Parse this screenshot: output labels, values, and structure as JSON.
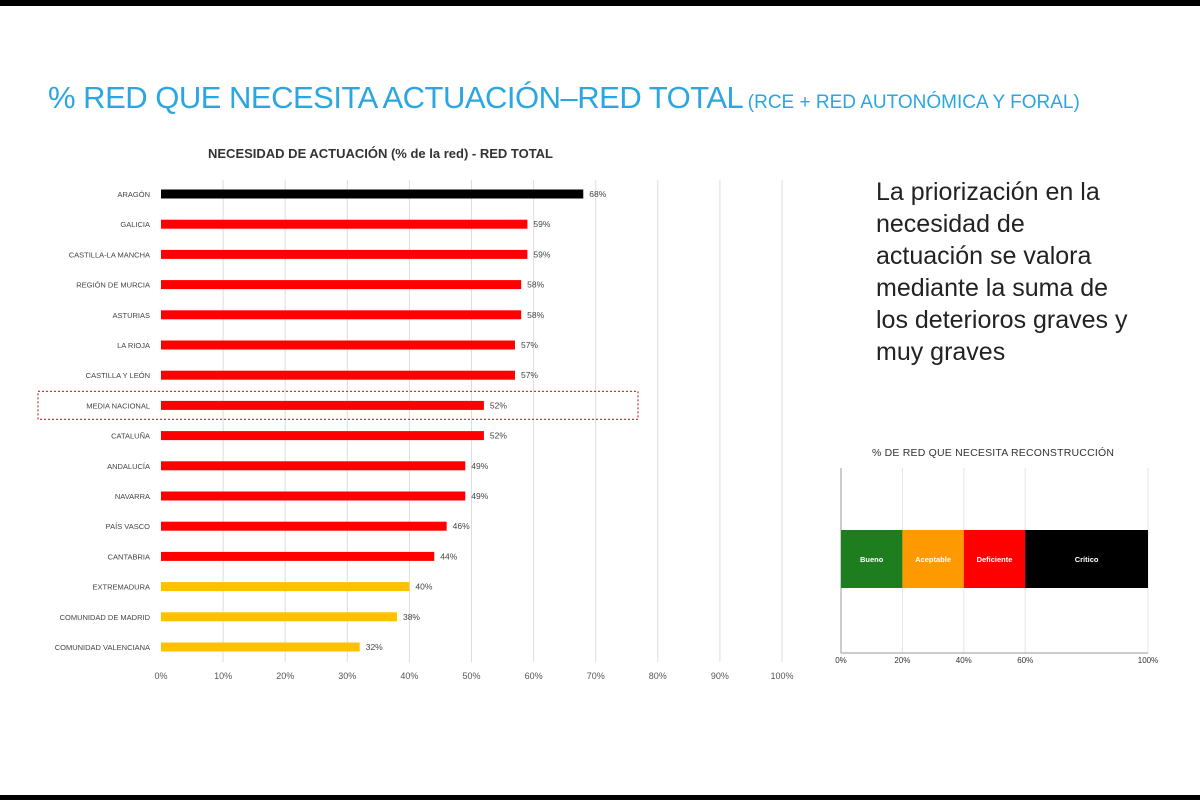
{
  "header": {
    "title_main": "% RED QUE NECESITA ACTUACIÓN–RED TOTAL",
    "title_sub": "(RCE + RED AUTONÓMICA Y FORAL)"
  },
  "side_text": "La priorización en la necesidad de actuación se valora mediante la suma de los deterioros graves y muy graves",
  "colors": {
    "title_blue": "#2aa6e0",
    "black": "#000000",
    "red": "#ff0000",
    "yellow": "#ffc000",
    "green": "#1e7d1e",
    "orange": "#ff9900",
    "highlight_border": "#e03030"
  },
  "chart_data": [
    {
      "type": "bar",
      "orientation": "horizontal",
      "title": "NECESIDAD DE ACTUACIÓN (% de la red)  - RED TOTAL",
      "xlim": [
        0,
        100
      ],
      "x_ticks": [
        "0%",
        "10%",
        "20%",
        "30%",
        "40%",
        "50%",
        "60%",
        "70%",
        "80%",
        "90%",
        "100%"
      ],
      "grid": "vertical",
      "highlighted_category": "MEDIA NACIONAL",
      "bars": [
        {
          "category": "ARAGÓN",
          "value": 68,
          "label": "68%",
          "color": "#000000"
        },
        {
          "category": "GALICIA",
          "value": 59,
          "label": "59%",
          "color": "#ff0000"
        },
        {
          "category": "CASTILLA-LA MANCHA",
          "value": 59,
          "label": "59%",
          "color": "#ff0000"
        },
        {
          "category": "REGIÓN DE MURCIA",
          "value": 58,
          "label": "58%",
          "color": "#ff0000"
        },
        {
          "category": "ASTURIAS",
          "value": 58,
          "label": "58%",
          "color": "#ff0000"
        },
        {
          "category": "LA RIOJA",
          "value": 57,
          "label": "57%",
          "color": "#ff0000"
        },
        {
          "category": "CASTILLA Y LEÓN",
          "value": 57,
          "label": "57%",
          "color": "#ff0000"
        },
        {
          "category": "MEDIA NACIONAL",
          "value": 52,
          "label": "52%",
          "color": "#ff0000"
        },
        {
          "category": "CATALUÑA",
          "value": 52,
          "label": "52%",
          "color": "#ff0000"
        },
        {
          "category": "ANDALUCÍA",
          "value": 49,
          "label": "49%",
          "color": "#ff0000"
        },
        {
          "category": "NAVARRA",
          "value": 49,
          "label": "49%",
          "color": "#ff0000"
        },
        {
          "category": "PAÍS VASCO",
          "value": 46,
          "label": "46%",
          "color": "#ff0000"
        },
        {
          "category": "CANTABRIA",
          "value": 44,
          "label": "44%",
          "color": "#ff0000"
        },
        {
          "category": "EXTREMADURA",
          "value": 40,
          "label": "40%",
          "color": "#ffc000"
        },
        {
          "category": "COMUNIDAD DE MADRID",
          "value": 38,
          "label": "38%",
          "color": "#ffc000"
        },
        {
          "category": "COMUNIDAD VALENCIANA",
          "value": 32,
          "label": "32%",
          "color": "#ffc000"
        }
      ]
    },
    {
      "type": "bar",
      "orientation": "horizontal-stacked",
      "title": "% DE RED QUE NECESITA RECONSTRUCCIÓN",
      "xlim": [
        0,
        100
      ],
      "x_ticks": [
        {
          "value": 0,
          "label": "0%"
        },
        {
          "value": 20,
          "label": "20%"
        },
        {
          "value": 40,
          "label": "40%"
        },
        {
          "value": 60,
          "label": "60%"
        },
        {
          "value": 100,
          "label": "100%"
        }
      ],
      "segments": [
        {
          "label": "Bueno",
          "start": 0,
          "end": 20,
          "color": "#1e7d1e"
        },
        {
          "label": "Aceptable",
          "start": 20,
          "end": 40,
          "color": "#ff9900"
        },
        {
          "label": "Deficiente",
          "start": 40,
          "end": 60,
          "color": "#ff0000"
        },
        {
          "label": "Crítico",
          "start": 60,
          "end": 100,
          "color": "#000000"
        }
      ]
    }
  ]
}
